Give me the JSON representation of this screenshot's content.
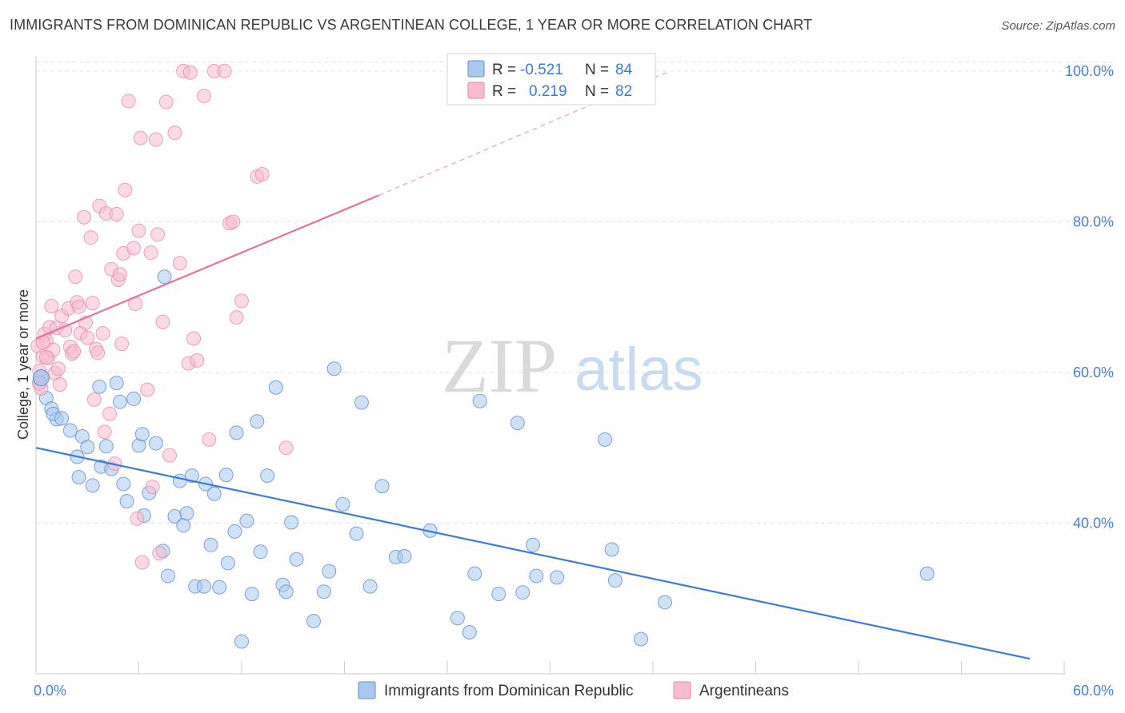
{
  "title": "IMMIGRANTS FROM DOMINICAN REPUBLIC VS ARGENTINEAN COLLEGE, 1 YEAR OR MORE CORRELATION CHART",
  "source": "Source: ZipAtlas.com",
  "watermark": {
    "zip": "ZIP",
    "atlas": "atlas"
  },
  "legend_box": {
    "rows": [
      {
        "r_label": "R =",
        "r_value": "-0.521",
        "n_label": "N =",
        "n_value": "84"
      },
      {
        "r_label": "R =",
        "r_value": "0.219",
        "n_label": "N =",
        "n_value": "82"
      }
    ]
  },
  "bottom_legend": [
    {
      "label": "Immigrants from Dominican Republic"
    },
    {
      "label": "Argentineans"
    }
  ],
  "colors": {
    "blue_fill": "#aac8ee",
    "blue_stroke": "#5b8fd6",
    "blue_line": "#3d7bd4",
    "pink_fill": "#f7bcd0",
    "pink_stroke": "#e889aa",
    "pink_line": "#e5729a",
    "tick_text": "#4a7fd0",
    "grid": "#e3e3e3"
  },
  "chart_data": {
    "type": "scatter",
    "title": "IMMIGRANTS FROM DOMINICAN REPUBLIC VS ARGENTINEAN COLLEGE, 1 YEAR OR MORE CORRELATION CHART",
    "xlabel": "",
    "ylabel": "College, 1 year or more",
    "xlim": [
      0,
      60
    ],
    "ylim": [
      20,
      102
    ],
    "x_tick_labels": [
      "0.0%",
      "60.0%"
    ],
    "y_tick_values": [
      40,
      60,
      80,
      100
    ],
    "y_tick_labels": [
      "40.0%",
      "60.0%",
      "80.0%",
      "100.0%"
    ],
    "grid": true,
    "series": [
      {
        "name": "Immigrants from Dominican Republic",
        "color": "#aac8ee",
        "r": -0.521,
        "n": 84,
        "trend": {
          "x": [
            0,
            58
          ],
          "y": [
            50.0,
            22.0
          ],
          "dashed_from_x": null
        },
        "points": [
          [
            0.3,
            59.3
          ],
          [
            0.6,
            56.6
          ],
          [
            0.9,
            55.2
          ],
          [
            1.2,
            53.8
          ],
          [
            1.0,
            54.5
          ],
          [
            1.5,
            53.9
          ],
          [
            2.0,
            52.3
          ],
          [
            2.4,
            48.8
          ],
          [
            2.5,
            46.1
          ],
          [
            2.7,
            51.5
          ],
          [
            3.0,
            50.1
          ],
          [
            3.3,
            45.0
          ],
          [
            3.7,
            58.1
          ],
          [
            3.8,
            47.5
          ],
          [
            4.1,
            50.2
          ],
          [
            4.4,
            47.2
          ],
          [
            4.7,
            58.6
          ],
          [
            4.9,
            56.1
          ],
          [
            5.1,
            45.2
          ],
          [
            5.3,
            42.9
          ],
          [
            5.7,
            56.5
          ],
          [
            6.0,
            50.3
          ],
          [
            6.2,
            51.8
          ],
          [
            6.3,
            41.0
          ],
          [
            6.6,
            44.0
          ],
          [
            7.0,
            50.6
          ],
          [
            7.4,
            36.3
          ],
          [
            7.5,
            72.7
          ],
          [
            7.7,
            33.0
          ],
          [
            8.1,
            40.9
          ],
          [
            8.4,
            45.6
          ],
          [
            8.6,
            39.7
          ],
          [
            8.8,
            41.3
          ],
          [
            9.1,
            46.3
          ],
          [
            9.3,
            31.6
          ],
          [
            9.8,
            31.6
          ],
          [
            9.9,
            45.2
          ],
          [
            10.2,
            37.1
          ],
          [
            10.4,
            43.9
          ],
          [
            10.7,
            31.5
          ],
          [
            11.1,
            46.4
          ],
          [
            11.2,
            34.7
          ],
          [
            11.6,
            38.9
          ],
          [
            11.7,
            52.0
          ],
          [
            12.0,
            24.3
          ],
          [
            12.3,
            40.3
          ],
          [
            12.6,
            30.6
          ],
          [
            12.9,
            53.5
          ],
          [
            13.1,
            36.2
          ],
          [
            13.5,
            46.3
          ],
          [
            14.0,
            58.0
          ],
          [
            14.4,
            31.8
          ],
          [
            14.6,
            30.9
          ],
          [
            14.9,
            40.1
          ],
          [
            15.2,
            35.2
          ],
          [
            16.2,
            27.0
          ],
          [
            16.8,
            30.9
          ],
          [
            17.1,
            33.6
          ],
          [
            17.4,
            60.5
          ],
          [
            17.9,
            42.5
          ],
          [
            18.7,
            38.6
          ],
          [
            19.0,
            56.0
          ],
          [
            19.5,
            31.6
          ],
          [
            20.2,
            44.9
          ],
          [
            21.0,
            35.5
          ],
          [
            21.5,
            35.6
          ],
          [
            23.0,
            39.0
          ],
          [
            24.6,
            27.4
          ],
          [
            25.3,
            25.5
          ],
          [
            25.6,
            33.3
          ],
          [
            25.9,
            56.2
          ],
          [
            27.0,
            30.6
          ],
          [
            28.1,
            53.3
          ],
          [
            28.4,
            30.8
          ],
          [
            29.0,
            37.1
          ],
          [
            29.2,
            33.0
          ],
          [
            30.4,
            32.8
          ],
          [
            33.2,
            51.1
          ],
          [
            33.6,
            36.5
          ],
          [
            33.8,
            32.4
          ],
          [
            35.3,
            24.6
          ],
          [
            36.7,
            29.5
          ],
          [
            52.0,
            33.3
          ],
          [
            0.2,
            58.7
          ]
        ]
      },
      {
        "name": "Argentineans",
        "color": "#f7bcd0",
        "r": 0.219,
        "n": 82,
        "trend": {
          "x": [
            0,
            20,
            37
          ],
          "y": [
            64.5,
            83.5,
            100.0
          ],
          "dashed_from_x": 20
        },
        "points": [
          [
            0.1,
            63.5
          ],
          [
            0.2,
            60.2
          ],
          [
            0.3,
            57.9
          ],
          [
            0.4,
            62.1
          ],
          [
            0.5,
            65.1
          ],
          [
            0.6,
            64.2
          ],
          [
            0.7,
            61.9
          ],
          [
            0.8,
            66.0
          ],
          [
            0.9,
            68.8
          ],
          [
            1.0,
            63.0
          ],
          [
            1.1,
            59.9
          ],
          [
            1.2,
            65.9
          ],
          [
            1.3,
            60.5
          ],
          [
            1.4,
            58.4
          ],
          [
            1.5,
            67.5
          ],
          [
            1.7,
            65.6
          ],
          [
            1.9,
            68.5
          ],
          [
            2.0,
            63.4
          ],
          [
            2.1,
            62.5
          ],
          [
            2.3,
            72.7
          ],
          [
            2.4,
            69.3
          ],
          [
            2.5,
            68.7
          ],
          [
            2.6,
            65.2
          ],
          [
            2.8,
            80.6
          ],
          [
            2.9,
            66.6
          ],
          [
            3.0,
            64.6
          ],
          [
            3.2,
            77.9
          ],
          [
            3.3,
            69.2
          ],
          [
            3.4,
            56.4
          ],
          [
            3.5,
            63.1
          ],
          [
            3.6,
            62.6
          ],
          [
            3.7,
            82.1
          ],
          [
            3.9,
            65.2
          ],
          [
            4.0,
            52.1
          ],
          [
            4.1,
            81.1
          ],
          [
            4.3,
            54.5
          ],
          [
            4.4,
            73.7
          ],
          [
            4.6,
            47.9
          ],
          [
            4.7,
            81.0
          ],
          [
            4.8,
            72.3
          ],
          [
            4.9,
            73.0
          ],
          [
            5.0,
            63.8
          ],
          [
            5.1,
            75.8
          ],
          [
            5.2,
            84.2
          ],
          [
            5.4,
            96.0
          ],
          [
            5.7,
            76.5
          ],
          [
            5.8,
            69.1
          ],
          [
            5.9,
            40.6
          ],
          [
            6.0,
            78.8
          ],
          [
            6.1,
            91.1
          ],
          [
            6.2,
            34.8
          ],
          [
            6.5,
            57.7
          ],
          [
            6.7,
            75.9
          ],
          [
            6.8,
            44.8
          ],
          [
            7.0,
            90.9
          ],
          [
            7.1,
            78.3
          ],
          [
            7.2,
            36.0
          ],
          [
            7.4,
            66.7
          ],
          [
            7.6,
            95.9
          ],
          [
            7.8,
            49.0
          ],
          [
            8.1,
            91.8
          ],
          [
            8.4,
            74.5
          ],
          [
            8.6,
            100.0
          ],
          [
            8.9,
            61.2
          ],
          [
            9.0,
            99.8
          ],
          [
            9.2,
            64.5
          ],
          [
            9.4,
            61.6
          ],
          [
            9.8,
            96.7
          ],
          [
            10.1,
            51.1
          ],
          [
            10.4,
            100.0
          ],
          [
            11.0,
            100.0
          ],
          [
            11.3,
            79.8
          ],
          [
            11.5,
            80.0
          ],
          [
            11.7,
            67.3
          ],
          [
            12.0,
            69.5
          ],
          [
            12.9,
            86.0
          ],
          [
            13.2,
            86.3
          ],
          [
            14.6,
            50.0
          ],
          [
            0.4,
            64.0
          ],
          [
            0.6,
            62.0
          ],
          [
            2.2,
            62.8
          ],
          [
            0.2,
            58.5
          ]
        ]
      }
    ]
  }
}
